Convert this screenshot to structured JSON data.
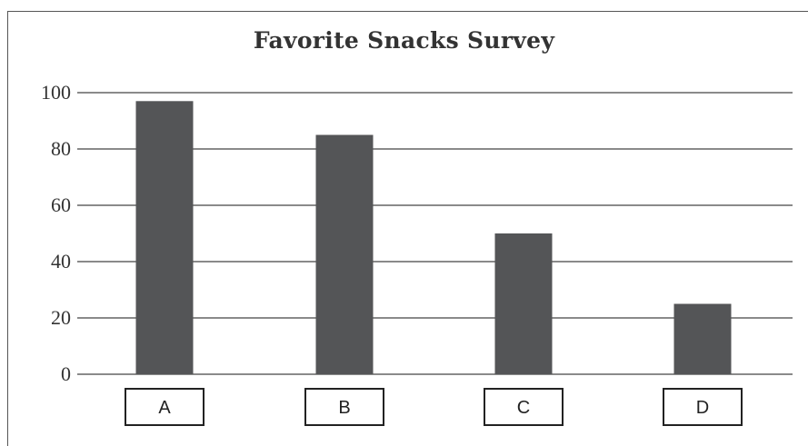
{
  "chart_data": {
    "type": "bar",
    "title": "Favorite Snacks Survey",
    "categories": [
      "A",
      "B",
      "C",
      "D"
    ],
    "values": [
      97,
      85,
      50,
      25
    ],
    "ylim": [
      0,
      100
    ],
    "yticks": [
      "0",
      "20",
      "40",
      "60",
      "80",
      "100"
    ],
    "grid": true,
    "colors": {
      "bar": "#545557",
      "grid": "#444444",
      "text": "#333333"
    }
  }
}
